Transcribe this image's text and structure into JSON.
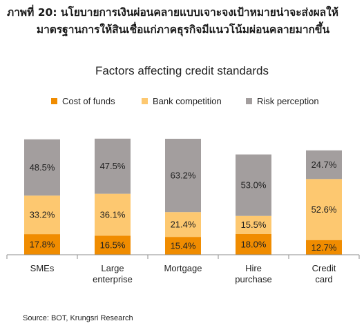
{
  "figure": {
    "title_line1": "ภาพที่ 20: นโยบายการเงินผ่อนคลายแบบเจาะจงเป้าหมายน่าจะส่งผลให้",
    "title_line2": "มาตรฐานการให้สินเชื่อแก่ภาคธุรกิจมีแนวโน้มผ่อนคลายมากขึ้น",
    "source": "Source: BOT, Krungsri Research"
  },
  "chart_data": {
    "type": "bar",
    "stacked": true,
    "title": "Factors affecting credit standards",
    "xlabel": "",
    "ylabel": "",
    "ylim": [
      0,
      100
    ],
    "categories": [
      [
        "SMEs"
      ],
      [
        "Large",
        "enterprise"
      ],
      [
        "Mortgage"
      ],
      [
        "Hire",
        "purchase"
      ],
      [
        "Credit",
        "card"
      ]
    ],
    "series": [
      {
        "name": "Cost of funds",
        "color": "#F08C00",
        "values": [
          17.8,
          16.5,
          15.4,
          18.0,
          12.7
        ]
      },
      {
        "name": "Bank competition",
        "color": "#FDC870",
        "values": [
          33.2,
          36.1,
          21.4,
          15.5,
          52.6
        ]
      },
      {
        "name": "Risk perception",
        "color": "#A39E9E",
        "values": [
          48.5,
          47.5,
          63.2,
          53.0,
          24.7
        ]
      }
    ],
    "value_suffix": "%",
    "legend_position": "top",
    "grid": false
  }
}
